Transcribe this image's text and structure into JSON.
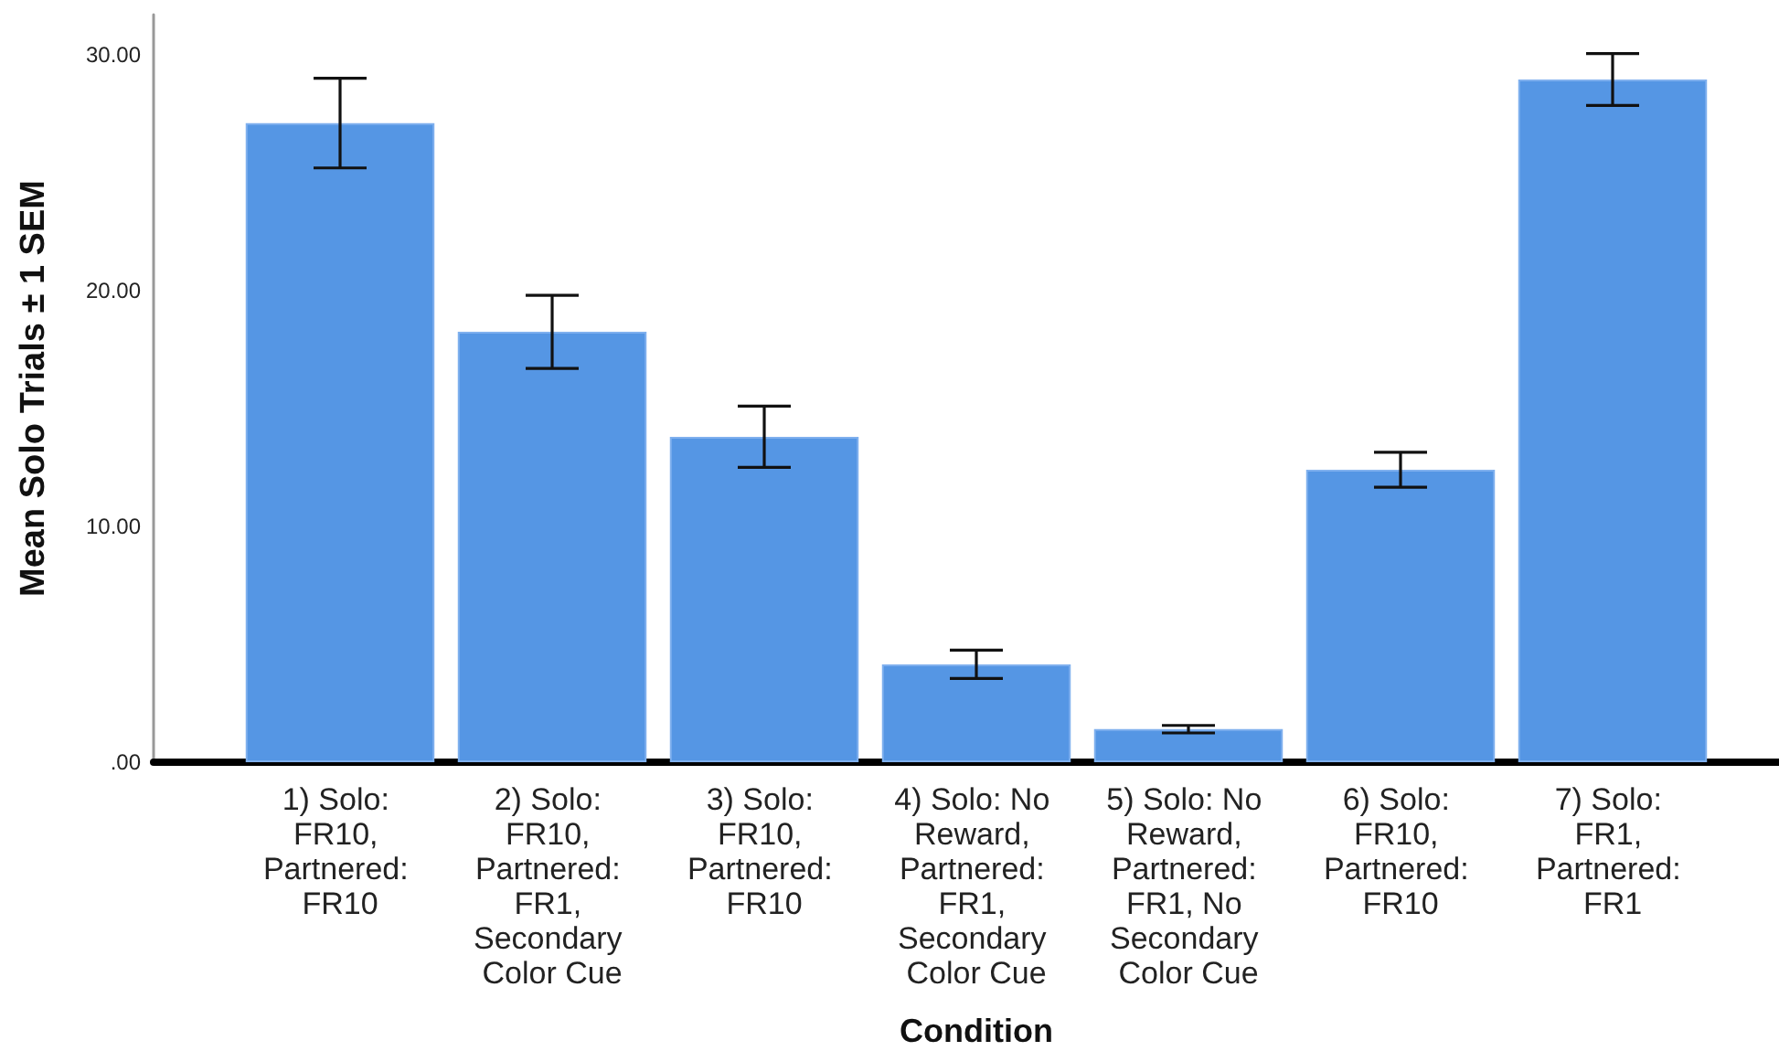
{
  "chart_data": {
    "type": "bar",
    "xlabel": "Condition",
    "ylabel": "Mean Solo Trials ± 1 SEM",
    "categories": [
      "1) Solo: FR10, Partnered: FR10",
      "2) Solo: FR10, Partnered: FR1, Secondary Color Cue",
      "3) Solo: FR10, Partnered: FR10",
      "4) Solo: No Reward, Partnered: FR1, Secondary Color Cue",
      "5) Solo: No Reward, Partnered: FR1, No Secondary Color Cue",
      "6) Solo: FR10, Partnered: FR10",
      "7) Solo: FR1, Partnered: FR1"
    ],
    "values": [
      27.1,
      18.25,
      13.8,
      4.15,
      1.4,
      12.4,
      28.95
    ],
    "errors": [
      1.9,
      1.55,
      1.3,
      0.6,
      0.16,
      0.74,
      1.1
    ],
    "color": "#5596e4",
    "ylim": [
      0,
      31.7
    ],
    "yticks": [
      {
        "value": 0,
        "label": ".00"
      },
      {
        "value": 10,
        "label": "10.00"
      },
      {
        "value": 20,
        "label": "20.00"
      },
      {
        "value": 30,
        "label": "30.00"
      }
    ]
  }
}
